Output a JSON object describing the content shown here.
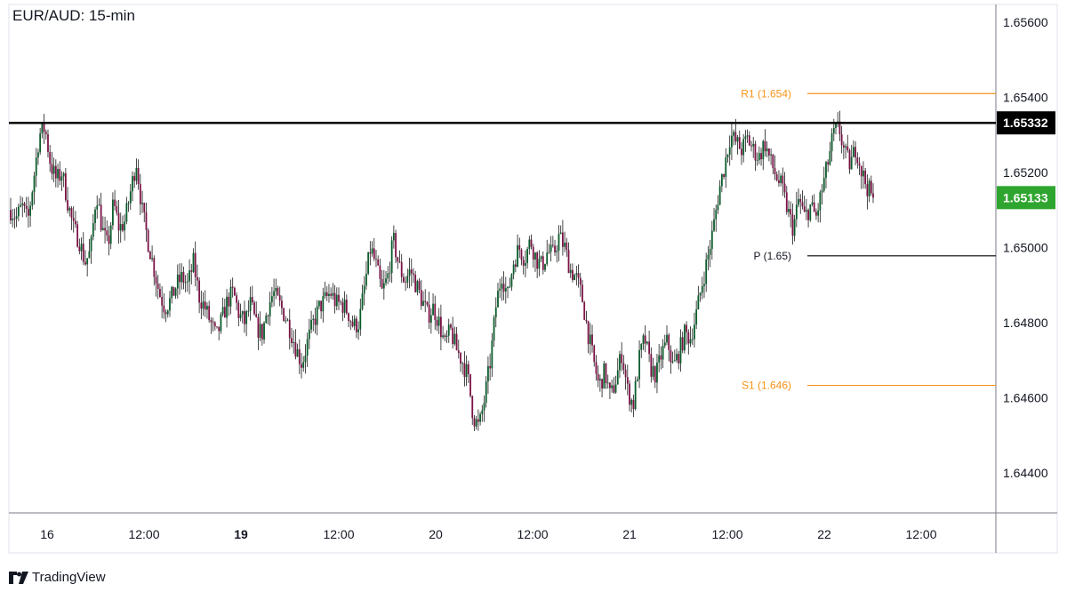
{
  "chart_data": {
    "type": "candlestick",
    "title": "EUR/AUD: 15-min",
    "y_range": [
      1.643,
      1.657
    ],
    "y_ticks": [
      "1.65600",
      "1.65400",
      "1.65200",
      "1.65000",
      "1.64800",
      "1.64600",
      "1.64400"
    ],
    "x_ticks": [
      {
        "label": "16",
        "bold": false
      },
      {
        "label": "12:00",
        "bold": false
      },
      {
        "label": "19",
        "bold": true
      },
      {
        "label": "12:00",
        "bold": false
      },
      {
        "label": "20",
        "bold": false
      },
      {
        "label": "12:00",
        "bold": false
      },
      {
        "label": "21",
        "bold": false
      },
      {
        "label": "12:00",
        "bold": false
      },
      {
        "label": "22",
        "bold": false
      },
      {
        "label": "12:00",
        "bold": false
      }
    ],
    "price_path": [
      [
        1.651,
        1
      ],
      [
        1.6508,
        2
      ],
      [
        1.6511,
        3
      ],
      [
        1.6507,
        4
      ],
      [
        1.6518,
        5
      ],
      [
        1.653,
        6
      ],
      [
        1.6532,
        7
      ],
      [
        1.6522,
        8
      ],
      [
        1.6518,
        9
      ],
      [
        1.652,
        10
      ],
      [
        1.6512,
        11
      ],
      [
        1.6505,
        12
      ],
      [
        1.6502,
        13
      ],
      [
        1.6496,
        14
      ],
      [
        1.6499,
        15
      ],
      [
        1.6515,
        16
      ],
      [
        1.6505,
        17
      ],
      [
        1.65,
        18
      ],
      [
        1.6512,
        19
      ],
      [
        1.6505,
        20
      ],
      [
        1.6507,
        21
      ],
      [
        1.6515,
        22
      ],
      [
        1.6523,
        23
      ],
      [
        1.651,
        24
      ],
      [
        1.6502,
        25
      ],
      [
        1.6495,
        26
      ],
      [
        1.6488,
        27
      ],
      [
        1.6484,
        28
      ],
      [
        1.6486,
        29
      ],
      [
        1.649,
        30
      ],
      [
        1.6492,
        31
      ],
      [
        1.649,
        32
      ],
      [
        1.6496,
        33
      ],
      [
        1.6487,
        34
      ],
      [
        1.6484,
        35
      ],
      [
        1.648,
        36
      ],
      [
        1.6476,
        37
      ],
      [
        1.6481,
        38
      ],
      [
        1.6486,
        39
      ],
      [
        1.6488,
        40
      ],
      [
        1.6482,
        41
      ],
      [
        1.648,
        42
      ],
      [
        1.6485,
        43
      ],
      [
        1.6479,
        44
      ],
      [
        1.6477,
        45
      ],
      [
        1.6484,
        46
      ],
      [
        1.6488,
        47
      ],
      [
        1.6485,
        48
      ],
      [
        1.6482,
        49
      ],
      [
        1.6478,
        50
      ],
      [
        1.6473,
        51
      ],
      [
        1.6469,
        52
      ],
      [
        1.6475,
        53
      ],
      [
        1.648,
        54
      ],
      [
        1.6484,
        55
      ],
      [
        1.6486,
        56
      ],
      [
        1.6488,
        57
      ],
      [
        1.6485,
        58
      ],
      [
        1.6485,
        59
      ],
      [
        1.6483,
        60
      ],
      [
        1.6479,
        61
      ],
      [
        1.648,
        62
      ],
      [
        1.649,
        63
      ],
      [
        1.65,
        64
      ],
      [
        1.6495,
        65
      ],
      [
        1.6488,
        66
      ],
      [
        1.6492,
        67
      ],
      [
        1.6502,
        68
      ],
      [
        1.6495,
        69
      ],
      [
        1.6491,
        70
      ],
      [
        1.6494,
        71
      ],
      [
        1.649,
        72
      ],
      [
        1.6486,
        73
      ],
      [
        1.6482,
        74
      ],
      [
        1.6484,
        75
      ],
      [
        1.648,
        76
      ],
      [
        1.6474,
        77
      ],
      [
        1.6478,
        78
      ],
      [
        1.6473,
        79
      ],
      [
        1.647,
        80
      ],
      [
        1.6466,
        81
      ],
      [
        1.6455,
        82
      ],
      [
        1.6452,
        83
      ],
      [
        1.646,
        84
      ],
      [
        1.647,
        85
      ],
      [
        1.6485,
        86
      ],
      [
        1.6493,
        87
      ],
      [
        1.6487,
        88
      ],
      [
        1.6496,
        89
      ],
      [
        1.65,
        90
      ],
      [
        1.6497,
        91
      ],
      [
        1.6502,
        92
      ],
      [
        1.6497,
        93
      ],
      [
        1.6495,
        94
      ],
      [
        1.6499,
        95
      ],
      [
        1.6498,
        96
      ],
      [
        1.6503,
        97
      ],
      [
        1.65,
        98
      ],
      [
        1.6494,
        99
      ],
      [
        1.6492,
        100
      ],
      [
        1.6487,
        101
      ],
      [
        1.6478,
        102
      ],
      [
        1.647,
        103
      ],
      [
        1.6463,
        104
      ],
      [
        1.6467,
        105
      ],
      [
        1.646,
        106
      ],
      [
        1.6465,
        107
      ],
      [
        1.6472,
        108
      ],
      [
        1.6462,
        109
      ],
      [
        1.6458,
        110
      ],
      [
        1.647,
        111
      ],
      [
        1.6476,
        112
      ],
      [
        1.6468,
        113
      ],
      [
        1.6466,
        114
      ],
      [
        1.6472,
        115
      ],
      [
        1.6475,
        116
      ],
      [
        1.6468,
        117
      ],
      [
        1.6472,
        118
      ],
      [
        1.6477,
        119
      ],
      [
        1.6476,
        120
      ],
      [
        1.6482,
        121
      ],
      [
        1.649,
        122
      ],
      [
        1.6497,
        123
      ],
      [
        1.6505,
        124
      ],
      [
        1.6515,
        125
      ],
      [
        1.6522,
        126
      ],
      [
        1.653,
        127
      ],
      [
        1.6528,
        128
      ],
      [
        1.6526,
        129
      ],
      [
        1.6529,
        130
      ],
      [
        1.6526,
        131
      ],
      [
        1.6524,
        132
      ],
      [
        1.6528,
        133
      ],
      [
        1.6523,
        134
      ],
      [
        1.6519,
        135
      ],
      [
        1.6516,
        136
      ],
      [
        1.651,
        137
      ],
      [
        1.6505,
        138
      ],
      [
        1.6513,
        139
      ],
      [
        1.6508,
        140
      ],
      [
        1.6511,
        141
      ],
      [
        1.6508,
        142
      ],
      [
        1.6515,
        143
      ],
      [
        1.6522,
        144
      ],
      [
        1.653,
        145
      ],
      [
        1.6532,
        146
      ],
      [
        1.6525,
        147
      ],
      [
        1.6522,
        148
      ],
      [
        1.6527,
        149
      ],
      [
        1.652,
        150
      ],
      [
        1.6516,
        151
      ],
      [
        1.6513,
        152
      ]
    ],
    "levels": [
      {
        "label": "R1 (1.654)",
        "value": 1.6541,
        "color": "#f7931a",
        "style": "thin"
      },
      {
        "label": "",
        "value": 1.65332,
        "color": "#000000",
        "style": "thick",
        "price_tag": "1.65332"
      },
      {
        "label": "P (1.65)",
        "value": 1.64978,
        "color": "#000000",
        "style": "thin"
      },
      {
        "label": "S1 (1.646)",
        "value": 1.64633,
        "color": "#f7931a",
        "style": "thin"
      }
    ],
    "last_price": {
      "value": 1.65133,
      "label": "1.65133",
      "color": "#2ea52e"
    }
  },
  "branding": {
    "logo_text": "TradingView"
  }
}
